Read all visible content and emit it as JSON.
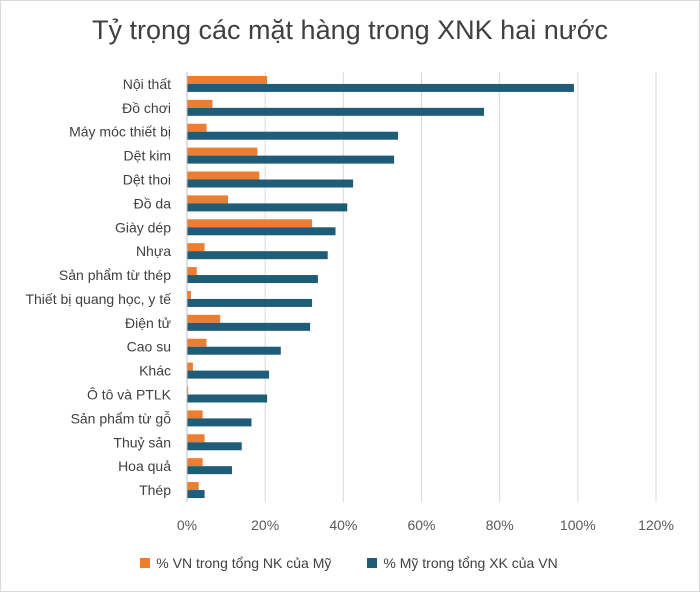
{
  "chart_data": {
    "type": "bar",
    "orientation": "horizontal",
    "title": "Tỷ trọng các mặt hàng trong XNK hai nước",
    "categories": [
      "Nội thất",
      "Đồ chơi",
      "Máy móc thiết bị",
      "Dệt kim",
      "Dệt thoi",
      "Đồ da",
      "Giày dép",
      "Nhựa",
      "Sản phẩm từ thép",
      "Thiết bị quang học, y tế",
      "Điện tử",
      "Cao su",
      "Khác",
      "Ô tô và PTLK",
      "Sản phẩm từ gỗ",
      "Thuỷ sản",
      "Hoa quả",
      "Thép"
    ],
    "series": [
      {
        "name": "% VN trong tổng NK của Mỹ",
        "color": "#ED7D31",
        "values": [
          20.5,
          6.5,
          5.0,
          18.0,
          18.5,
          10.5,
          32.0,
          4.5,
          2.5,
          1.0,
          8.5,
          5.0,
          1.5,
          0.3,
          4.0,
          4.5,
          4.0,
          3.0
        ]
      },
      {
        "name": "% Mỹ trong tổng XK của VN",
        "color": "#1F5C78",
        "values": [
          99.0,
          76.0,
          54.0,
          53.0,
          42.5,
          41.0,
          38.0,
          36.0,
          33.5,
          32.0,
          31.5,
          24.0,
          21.0,
          20.5,
          16.5,
          14.0,
          11.5,
          4.5
        ]
      }
    ],
    "xlim": [
      0,
      120
    ],
    "xticks": [
      "0%",
      "20%",
      "40%",
      "60%",
      "80%",
      "100%",
      "120%"
    ],
    "grid": true,
    "legend": "bottom"
  }
}
